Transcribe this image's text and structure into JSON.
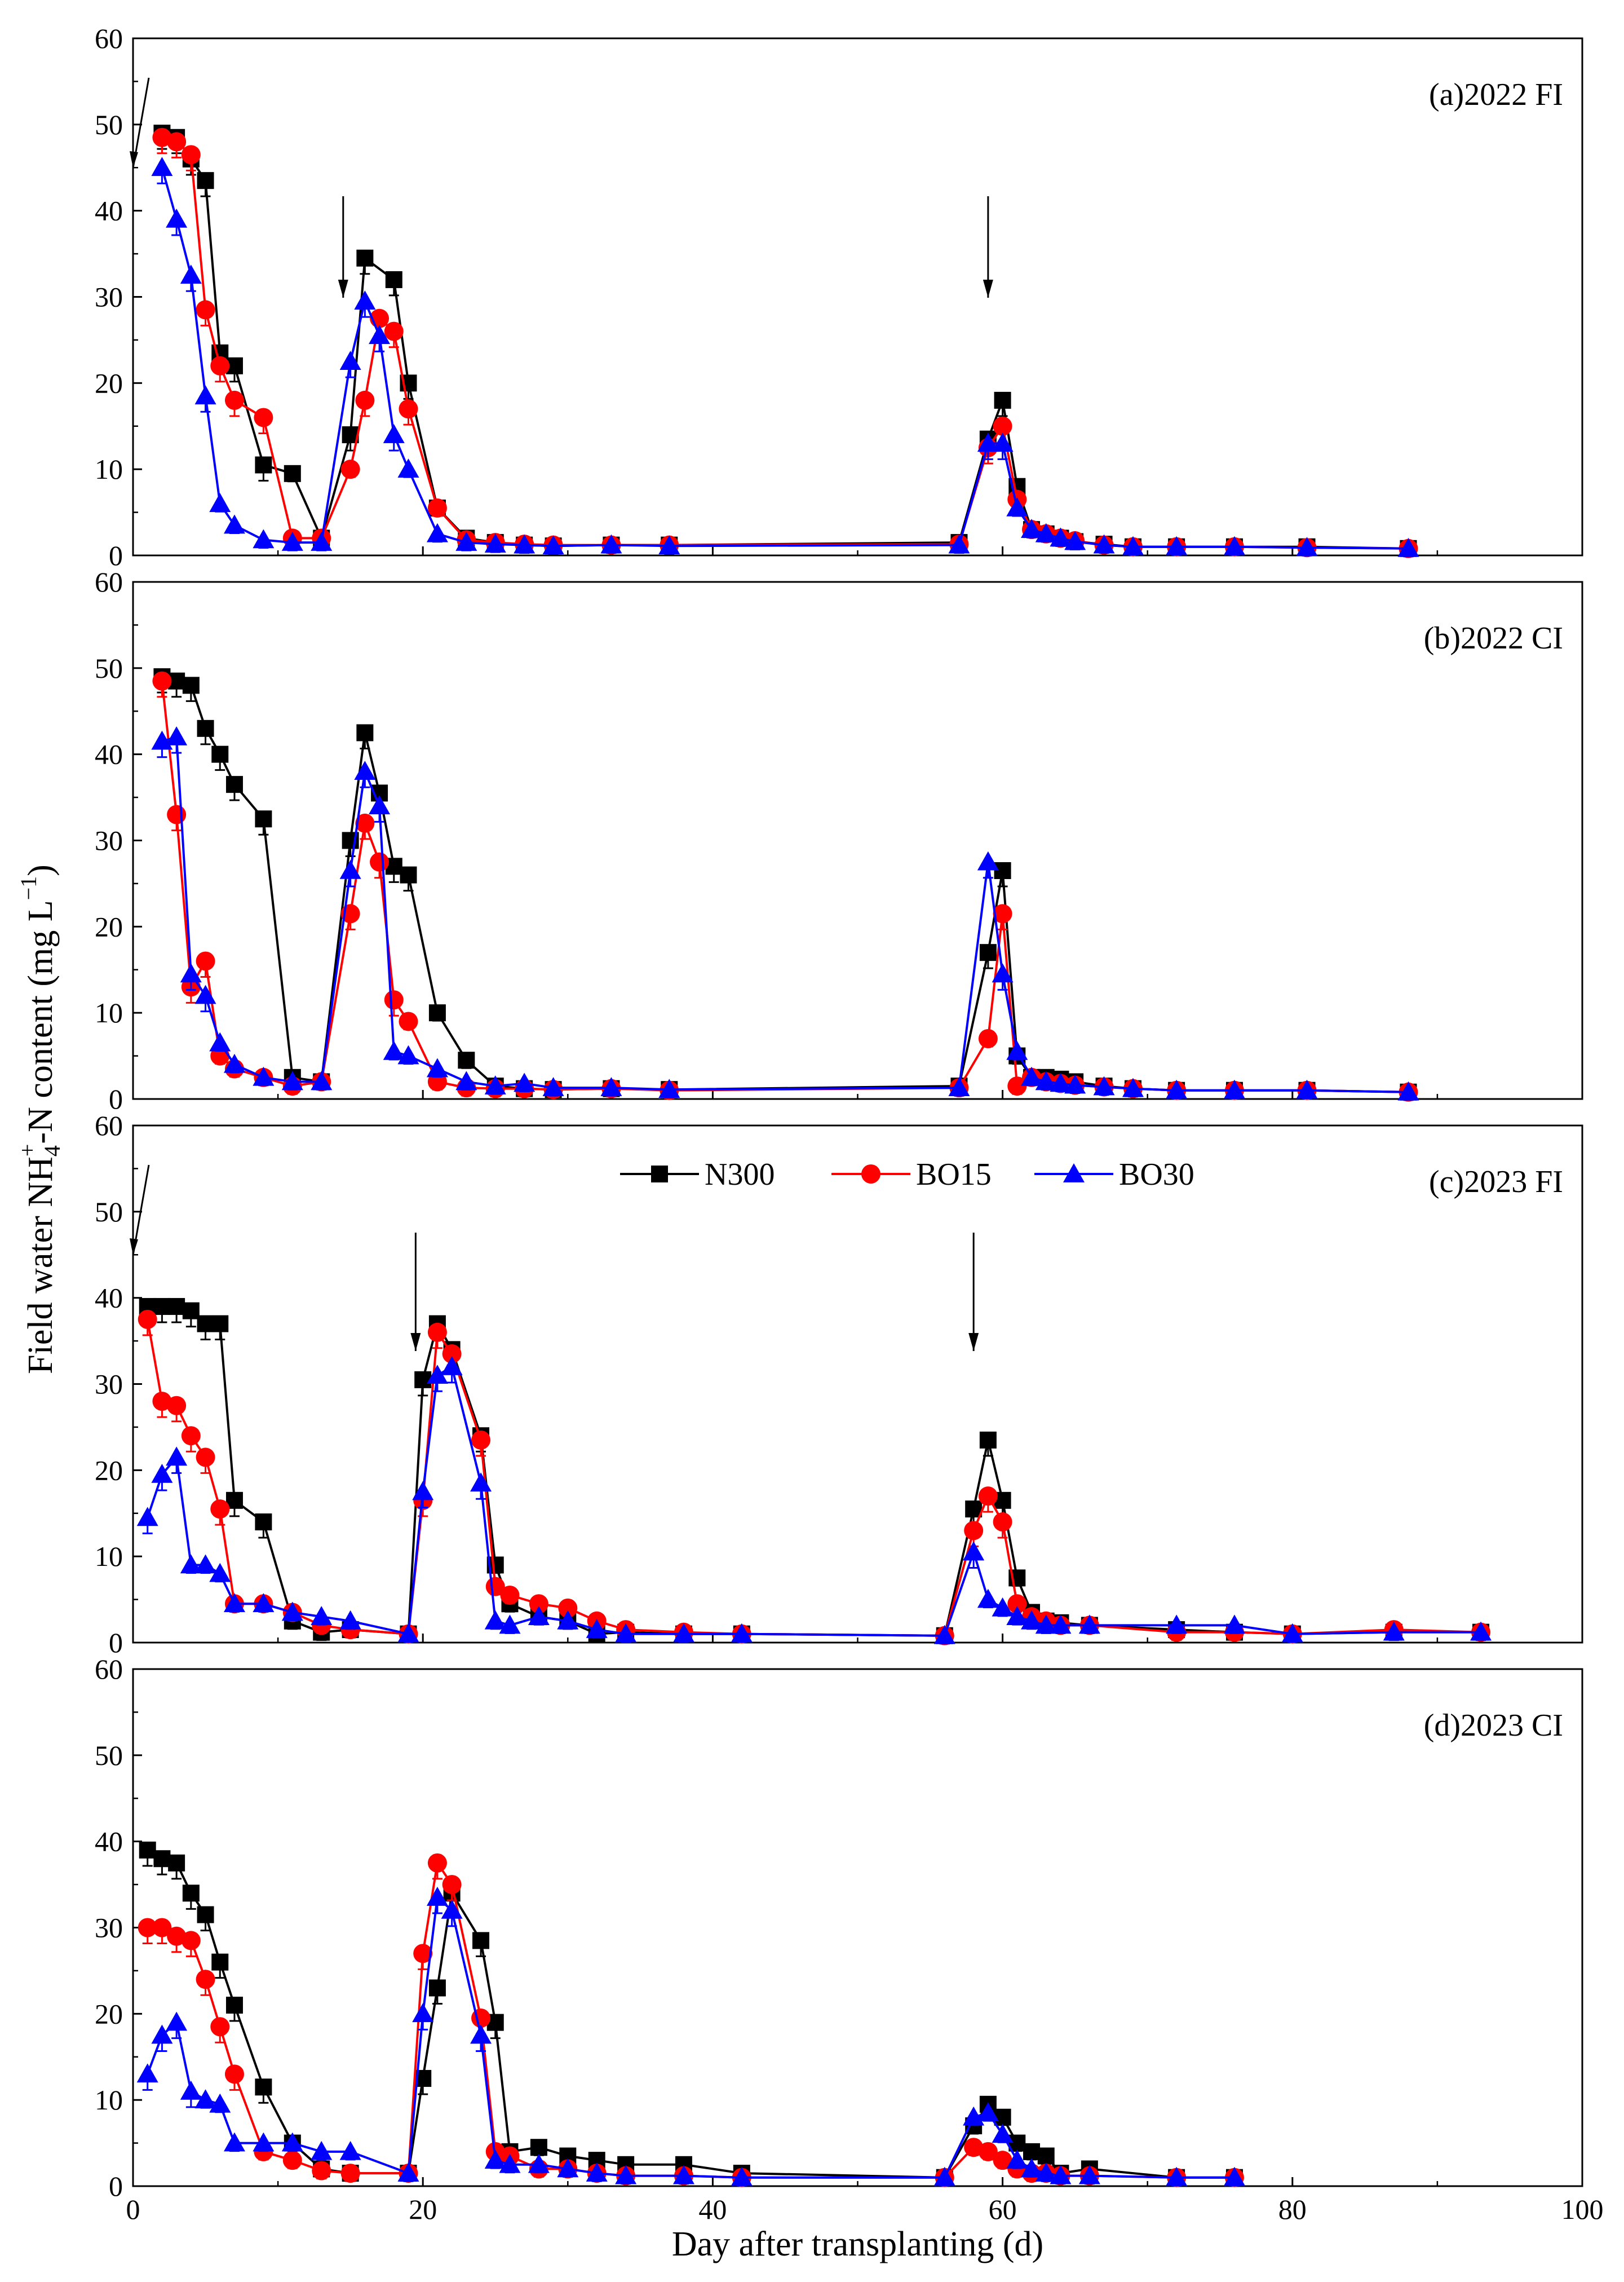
{
  "chart_data": {
    "type": "line",
    "xlabel": "Day after transplanting (d)",
    "ylabel_parts": {
      "main": "Field water NH",
      "sub": "4",
      "sup": "+",
      "rest": "-N content (mg L",
      "sup2": "−1",
      "close": ")"
    },
    "xlim": [
      0,
      100
    ],
    "ylim": [
      0,
      60
    ],
    "x_ticks": [
      0,
      20,
      40,
      60,
      80,
      100
    ],
    "y_ticks": [
      0,
      10,
      20,
      30,
      40,
      50,
      60
    ],
    "legend_location": "top-center of panel (c)",
    "legend": [
      {
        "name": "N300",
        "color": "#000000",
        "marker": "square"
      },
      {
        "name": "BO15",
        "color": "#ff0000",
        "marker": "circle"
      },
      {
        "name": "BO30",
        "color": "#0000ff",
        "marker": "triangle"
      }
    ],
    "panels": [
      {
        "label": "(a)2022 FI",
        "arrows_at_day": [
          0,
          14.5,
          59
        ],
        "series": [
          {
            "name": "N300",
            "x": [
              2,
              3,
              4,
              5,
              6,
              7,
              9,
              11,
              13,
              15,
              16,
              18,
              19,
              21,
              23,
              25,
              27,
              29,
              33,
              37,
              57,
              59,
              60,
              61,
              62,
              63,
              64,
              65,
              67,
              69,
              72,
              76,
              81,
              88
            ],
            "y": [
              49,
              48.5,
              46,
              43.5,
              23.5,
              22,
              10.5,
              9.5,
              2,
              14,
              34.5,
              32,
              20,
              5.5,
              2,
              1.5,
              1.2,
              1.1,
              1.2,
              1.2,
              1.5,
              13.5,
              18,
              8,
              3,
              2.5,
              2,
              1.6,
              1.3,
              1,
              1,
              1,
              1,
              0.8
            ]
          },
          {
            "name": "BO15",
            "x": [
              2,
              3,
              4,
              5,
              6,
              7,
              9,
              11,
              13,
              15,
              16,
              17,
              18,
              19,
              21,
              23,
              25,
              27,
              29,
              33,
              37,
              57,
              59,
              60,
              61,
              62,
              63,
              64,
              65,
              67,
              69,
              72,
              76,
              81,
              88
            ],
            "y": [
              48.5,
              48,
              46.5,
              28.5,
              22,
              18,
              16,
              2,
              2,
              10,
              18,
              27.5,
              26,
              17,
              5.5,
              1.8,
              1.5,
              1.3,
              1.2,
              1.2,
              1.2,
              1.3,
              12.5,
              15,
              6.5,
              3,
              2.5,
              2,
              1.7,
              1.2,
              1,
              1,
              1,
              0.9,
              0.8
            ]
          },
          {
            "name": "BO30",
            "x": [
              2,
              3,
              4,
              5,
              6,
              7,
              9,
              11,
              13,
              15,
              16,
              17,
              18,
              19,
              21,
              23,
              25,
              27,
              29,
              33,
              37,
              57,
              59,
              60,
              61,
              62,
              63,
              64,
              65,
              67,
              69,
              72,
              76,
              81,
              88
            ],
            "y": [
              45,
              39,
              32.5,
              18.5,
              6,
              3.5,
              1.8,
              1.5,
              1.5,
              22.5,
              29.5,
              25.5,
              14,
              10,
              2.5,
              1.5,
              1.3,
              1.2,
              1.1,
              1.2,
              1.1,
              1.2,
              13,
              13,
              5.5,
              3,
              2.5,
              2,
              1.6,
              1.2,
              1,
              1,
              1,
              0.9,
              0.8
            ]
          }
        ]
      },
      {
        "label": "(b)2022 CI",
        "arrows_at_day": [],
        "series": [
          {
            "name": "N300",
            "x": [
              2,
              3,
              4,
              5,
              6,
              7,
              9,
              11,
              13,
              15,
              16,
              17,
              18,
              19,
              21,
              23,
              25,
              27,
              29,
              33,
              37,
              57,
              59,
              60,
              61,
              62,
              63,
              64,
              65,
              67,
              69,
              72,
              76,
              81,
              88
            ],
            "y": [
              49,
              48.5,
              48,
              43,
              40,
              36.5,
              32.5,
              2.5,
              2,
              30,
              42.5,
              35.5,
              27,
              26,
              10,
              4.5,
              1.5,
              1.2,
              1.1,
              1.2,
              1.1,
              1.5,
              17,
              26.5,
              5,
              2.5,
              2.5,
              2.3,
              2,
              1.5,
              1.2,
              1,
              1,
              1,
              0.8
            ]
          },
          {
            "name": "BO15",
            "x": [
              2,
              3,
              4,
              5,
              6,
              7,
              9,
              11,
              13,
              15,
              16,
              17,
              18,
              19,
              21,
              23,
              25,
              27,
              29,
              33,
              37,
              57,
              59,
              60,
              61,
              62,
              63,
              64,
              65,
              67,
              69,
              72,
              76,
              81,
              88
            ],
            "y": [
              48.5,
              33,
              13,
              16,
              5,
              3.5,
              2.5,
              1.5,
              2,
              21.5,
              32,
              27.5,
              11.5,
              9,
              2,
              1.3,
              1.2,
              1.2,
              1.1,
              1.2,
              1,
              1.3,
              7,
              21.5,
              1.5,
              2.5,
              2,
              1.8,
              1.6,
              1.4,
              1.2,
              1,
              1,
              1,
              0.8
            ]
          },
          {
            "name": "BO30",
            "x": [
              2,
              3,
              4,
              5,
              6,
              7,
              9,
              11,
              13,
              15,
              16,
              17,
              18,
              19,
              21,
              23,
              25,
              27,
              29,
              33,
              37,
              57,
              59,
              60,
              61,
              62,
              63,
              64,
              65,
              67,
              69,
              72,
              76,
              81,
              88
            ],
            "y": [
              41.5,
              42,
              14.5,
              12,
              6.5,
              4,
              2.5,
              2,
              2,
              26.5,
              38,
              34,
              5.5,
              5,
              3.5,
              2,
              1.5,
              1.8,
              1.3,
              1.3,
              1.1,
              1.3,
              27.5,
              14.5,
              5.5,
              2.5,
              2,
              1.8,
              1.6,
              1.4,
              1.2,
              1,
              1,
              1,
              0.8
            ]
          }
        ]
      },
      {
        "label": "(c)2023 FI",
        "arrows_at_day": [
          0,
          19.5,
          58
        ],
        "series": [
          {
            "name": "N300",
            "x": [
              1,
              2,
              3,
              4,
              5,
              6,
              7,
              9,
              11,
              13,
              15,
              19,
              20,
              21,
              22,
              24,
              25,
              26,
              28,
              30,
              32,
              34,
              38,
              42,
              56,
              58,
              59,
              60,
              61,
              62,
              63,
              64,
              66,
              72,
              76,
              80,
              87,
              93
            ],
            "y": [
              39,
              39,
              39,
              38.5,
              37,
              37,
              16.5,
              14,
              2.5,
              1.2,
              1.5,
              1,
              30.5,
              37,
              34,
              24,
              9,
              4.5,
              3,
              2.5,
              1,
              1.2,
              1,
              1,
              0.8,
              15.5,
              23.5,
              16.5,
              7.5,
              3.5,
              2.5,
              2.3,
              2,
              1.5,
              1.2,
              1,
              1.2,
              1.2
            ]
          },
          {
            "name": "BO15",
            "x": [
              1,
              2,
              3,
              4,
              5,
              6,
              7,
              9,
              11,
              13,
              15,
              19,
              20,
              21,
              22,
              24,
              25,
              26,
              28,
              30,
              32,
              34,
              38,
              42,
              56,
              58,
              59,
              60,
              61,
              62,
              63,
              64,
              66,
              72,
              76,
              80,
              87,
              93
            ],
            "y": [
              37.5,
              28,
              27.5,
              24,
              21.5,
              15.5,
              4.5,
              4.5,
              3.5,
              2,
              1.5,
              1,
              16.5,
              36,
              33.5,
              23.5,
              6.5,
              5.5,
              4.5,
              4,
              2.5,
              1.5,
              1.2,
              1,
              0.8,
              13,
              17,
              14,
              4.5,
              3,
              2.5,
              2,
              2,
              1.2,
              1.2,
              1,
              1.5,
              1.2
            ]
          },
          {
            "name": "BO30",
            "x": [
              1,
              2,
              3,
              4,
              5,
              6,
              7,
              9,
              11,
              13,
              15,
              19,
              20,
              21,
              22,
              24,
              25,
              26,
              28,
              30,
              32,
              34,
              38,
              42,
              56,
              58,
              59,
              60,
              61,
              62,
              63,
              64,
              66,
              72,
              76,
              80,
              87,
              93
            ],
            "y": [
              14.5,
              19.5,
              21.5,
              9,
              9,
              8,
              4.5,
              4.5,
              3.5,
              3,
              2.5,
              1,
              17.5,
              31,
              32,
              18.5,
              2.5,
              2,
              3,
              2.5,
              1.5,
              1,
              1,
              1,
              0.8,
              10.5,
              5,
              4,
              3,
              2.5,
              2,
              2,
              2,
              2,
              2,
              1,
              1.2,
              1.2
            ]
          }
        ]
      },
      {
        "label": "(d)2023 CI",
        "arrows_at_day": [],
        "series": [
          {
            "name": "N300",
            "x": [
              1,
              2,
              3,
              4,
              5,
              6,
              7,
              9,
              11,
              13,
              15,
              19,
              20,
              21,
              22,
              24,
              25,
              26,
              28,
              30,
              32,
              34,
              38,
              42,
              56,
              58,
              59,
              60,
              61,
              62,
              63,
              64,
              66,
              72,
              76
            ],
            "y": [
              39,
              38,
              37.5,
              34,
              31.5,
              26,
              21,
              11.5,
              5,
              2,
              1.5,
              1.5,
              12.5,
              23,
              34,
              28.5,
              19,
              4,
              4.5,
              3.5,
              3,
              2.5,
              2.5,
              1.5,
              1,
              7,
              9.5,
              8,
              5,
              4,
              3.5,
              1.5,
              2,
              1,
              1
            ]
          },
          {
            "name": "BO15",
            "x": [
              1,
              2,
              3,
              4,
              5,
              6,
              7,
              9,
              11,
              13,
              15,
              19,
              20,
              21,
              22,
              24,
              25,
              26,
              28,
              30,
              32,
              34,
              38,
              42,
              56,
              58,
              59,
              60,
              61,
              62,
              63,
              64,
              66,
              72,
              76
            ],
            "y": [
              30,
              30,
              29,
              28.5,
              24,
              18.5,
              13,
              4,
              3,
              1.8,
              1.5,
              1.5,
              27,
              37.5,
              35,
              19.5,
              4,
              3.5,
              2,
              2,
              1.5,
              1.2,
              1.2,
              1,
              1,
              4.5,
              4,
              3,
              2,
              1.5,
              1.5,
              1.2,
              1.2,
              1,
              1
            ]
          },
          {
            "name": "BO30",
            "x": [
              1,
              2,
              3,
              4,
              5,
              6,
              7,
              9,
              11,
              13,
              15,
              19,
              20,
              21,
              22,
              24,
              25,
              26,
              28,
              30,
              32,
              34,
              38,
              42,
              56,
              58,
              59,
              60,
              61,
              62,
              63,
              64,
              66,
              72,
              76
            ],
            "y": [
              13,
              17.5,
              19,
              11,
              10,
              9.5,
              5,
              5,
              5,
              4,
              4,
              1.5,
              20,
              33.5,
              32,
              17.5,
              3,
              2.5,
              2.5,
              2,
              1.5,
              1.2,
              1.2,
              1,
              1,
              8,
              8.5,
              6,
              3,
              2,
              1.5,
              1.2,
              1.2,
              1,
              1
            ]
          }
        ]
      }
    ]
  }
}
